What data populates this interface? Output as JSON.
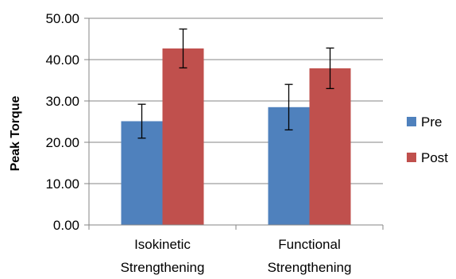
{
  "chart_data": {
    "type": "bar",
    "ylabel": "Peak Torque",
    "ylim": [
      0,
      50
    ],
    "yticks": [
      "0.00",
      "10.00",
      "20.00",
      "30.00",
      "40.00",
      "50.00"
    ],
    "ytick_values": [
      0,
      10,
      20,
      30,
      40,
      50
    ],
    "categories": [
      [
        "Isokinetic",
        "Strengthening"
      ],
      [
        "Functional",
        "Strengthening"
      ]
    ],
    "series": [
      {
        "name": "Pre",
        "color": "#4f81bd",
        "values": [
          25.1,
          28.5
        ],
        "errors": [
          4.1,
          5.5
        ]
      },
      {
        "name": "Post",
        "color": "#c0504d",
        "values": [
          42.7,
          37.9
        ],
        "errors": [
          4.7,
          4.9
        ]
      }
    ],
    "grid": true,
    "legend": "right",
    "error_bars": true
  }
}
